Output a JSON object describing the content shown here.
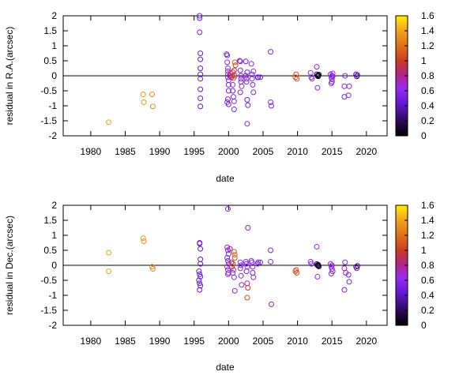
{
  "chart_data": [
    {
      "type": "scatter",
      "xlabel": "date",
      "ylabel": "residual in R.A.(arcsec)",
      "xlim": [
        1976,
        2023
      ],
      "ylim": [
        -2,
        2
      ],
      "x_ticks": [
        "1980",
        "1985",
        "1990",
        "1995",
        "2000",
        "2005",
        "2010",
        "2015",
        "2020"
      ],
      "y_ticks": [
        "-2",
        "-1.5",
        "-1",
        "-0.5",
        "0",
        "0.5",
        "1",
        "1.5",
        "2"
      ],
      "zero_line": true,
      "grid": false,
      "colorbar": {
        "range": [
          0,
          1.6
        ],
        "ticks": [
          "0",
          "0.2",
          "0.4",
          "0.6",
          "0.8",
          "1",
          "1.2",
          "1.4",
          "1.6"
        ],
        "palette": "gnuplot black-purple-red-yellow"
      },
      "points": [
        {
          "x": 1982.6,
          "y": -1.55,
          "c": 1.4
        },
        {
          "x": 1987.6,
          "y": -0.62,
          "c": 1.35
        },
        {
          "x": 1987.7,
          "y": -0.88,
          "c": 1.35
        },
        {
          "x": 1988.9,
          "y": -0.62,
          "c": 1.3
        },
        {
          "x": 1989.0,
          "y": -1.02,
          "c": 1.3
        },
        {
          "x": 1995.8,
          "y": 2.0,
          "c": 0.5
        },
        {
          "x": 1995.8,
          "y": 1.92,
          "c": 0.5
        },
        {
          "x": 1995.8,
          "y": 1.45,
          "c": 0.5
        },
        {
          "x": 1995.9,
          "y": 0.75,
          "c": 0.45
        },
        {
          "x": 1995.9,
          "y": 0.55,
          "c": 0.45
        },
        {
          "x": 1995.9,
          "y": 0.25,
          "c": 0.45
        },
        {
          "x": 1995.9,
          "y": 0.05,
          "c": 0.45
        },
        {
          "x": 1995.9,
          "y": -0.1,
          "c": 0.45
        },
        {
          "x": 1995.9,
          "y": -0.45,
          "c": 0.45
        },
        {
          "x": 1995.9,
          "y": -0.75,
          "c": 0.45
        },
        {
          "x": 1995.9,
          "y": -1.02,
          "c": 0.45
        },
        {
          "x": 1999.7,
          "y": 0.72,
          "c": 0.55
        },
        {
          "x": 1999.8,
          "y": 0.68,
          "c": 0.55
        },
        {
          "x": 1999.8,
          "y": 0.45,
          "c": 0.55
        },
        {
          "x": 1999.9,
          "y": 0.25,
          "c": 0.6
        },
        {
          "x": 1999.9,
          "y": 0.15,
          "c": 0.6
        },
        {
          "x": 1999.9,
          "y": 0.05,
          "c": 0.6
        },
        {
          "x": 1999.9,
          "y": -0.05,
          "c": 0.6
        },
        {
          "x": 2000.0,
          "y": -0.15,
          "c": 0.6
        },
        {
          "x": 2000.0,
          "y": -0.3,
          "c": 0.55
        },
        {
          "x": 2000.0,
          "y": -0.5,
          "c": 0.55
        },
        {
          "x": 1999.9,
          "y": -0.78,
          "c": 0.55
        },
        {
          "x": 1999.8,
          "y": -0.88,
          "c": 0.55
        },
        {
          "x": 2000.0,
          "y": -0.95,
          "c": 0.55
        },
        {
          "x": 2000.2,
          "y": 0.0,
          "c": 0.75
        },
        {
          "x": 2000.3,
          "y": 0.08,
          "c": 0.8
        },
        {
          "x": 2000.4,
          "y": -0.05,
          "c": 0.8
        },
        {
          "x": 2000.5,
          "y": 0.0,
          "c": 0.9
        },
        {
          "x": 2000.6,
          "y": 0.12,
          "c": 1.0
        },
        {
          "x": 2000.7,
          "y": -0.08,
          "c": 1.1
        },
        {
          "x": 2000.8,
          "y": 0.18,
          "c": 0.95
        },
        {
          "x": 2000.9,
          "y": 0.45,
          "c": 1.15
        },
        {
          "x": 2000.9,
          "y": 0.0,
          "c": 0.9
        },
        {
          "x": 2000.6,
          "y": -0.5,
          "c": 0.55
        },
        {
          "x": 2000.7,
          "y": -0.7,
          "c": 0.55
        },
        {
          "x": 2000.8,
          "y": -0.85,
          "c": 0.55
        },
        {
          "x": 2000.8,
          "y": -1.12,
          "c": 0.5
        },
        {
          "x": 2000.6,
          "y": -0.3,
          "c": 0.6
        },
        {
          "x": 2001.0,
          "y": 0.35,
          "c": 1.0
        },
        {
          "x": 2001.6,
          "y": 0.5,
          "c": 0.55
        },
        {
          "x": 2001.7,
          "y": 0.48,
          "c": 0.55
        },
        {
          "x": 2001.7,
          "y": 0.18,
          "c": 0.55
        },
        {
          "x": 2001.8,
          "y": 0.0,
          "c": 0.6
        },
        {
          "x": 2001.8,
          "y": -0.1,
          "c": 0.6
        },
        {
          "x": 2001.8,
          "y": -0.2,
          "c": 0.55
        },
        {
          "x": 2001.9,
          "y": -0.35,
          "c": 0.55
        },
        {
          "x": 2001.7,
          "y": -0.55,
          "c": 0.55
        },
        {
          "x": 2002.5,
          "y": 0.0,
          "c": 0.55
        },
        {
          "x": 2002.6,
          "y": -0.1,
          "c": 0.55
        },
        {
          "x": 2002.6,
          "y": -0.2,
          "c": 0.55
        },
        {
          "x": 2002.7,
          "y": 0.12,
          "c": 0.5
        },
        {
          "x": 2002.5,
          "y": 0.48,
          "c": 0.5
        },
        {
          "x": 2002.7,
          "y": -0.8,
          "c": 0.5
        },
        {
          "x": 2002.8,
          "y": -0.98,
          "c": 0.55
        },
        {
          "x": 2002.7,
          "y": -1.6,
          "c": 0.55
        },
        {
          "x": 2003.3,
          "y": 0.4,
          "c": 0.55
        },
        {
          "x": 2003.4,
          "y": 0.05,
          "c": 0.55
        },
        {
          "x": 2003.4,
          "y": -0.1,
          "c": 0.55
        },
        {
          "x": 2003.5,
          "y": -0.3,
          "c": 0.55
        },
        {
          "x": 2003.6,
          "y": -0.55,
          "c": 0.55
        },
        {
          "x": 2003.6,
          "y": 0.15,
          "c": 0.6
        },
        {
          "x": 2004.2,
          "y": -0.05,
          "c": 0.5
        },
        {
          "x": 2004.3,
          "y": -0.05,
          "c": 0.55
        },
        {
          "x": 2004.6,
          "y": -0.05,
          "c": 0.5
        },
        {
          "x": 2006.1,
          "y": 0.8,
          "c": 0.55
        },
        {
          "x": 2006.1,
          "y": -0.88,
          "c": 0.55
        },
        {
          "x": 2006.2,
          "y": -1.0,
          "c": 0.55
        },
        {
          "x": 2009.8,
          "y": 0.05,
          "c": 1.05
        },
        {
          "x": 2009.9,
          "y": -0.1,
          "c": 1.05
        },
        {
          "x": 2009.7,
          "y": -0.05,
          "c": 1.1
        },
        {
          "x": 2011.9,
          "y": 0.1,
          "c": 0.6
        },
        {
          "x": 2012.0,
          "y": -0.05,
          "c": 0.6
        },
        {
          "x": 2012.1,
          "y": -0.1,
          "c": 0.6
        },
        {
          "x": 2012.8,
          "y": 0.3,
          "c": 0.6
        },
        {
          "x": 2012.9,
          "y": -0.4,
          "c": 0.6
        },
        {
          "x": 2012.9,
          "y": 0.0,
          "c": 0.1
        },
        {
          "x": 2013.0,
          "y": 0.02,
          "c": 0.05
        },
        {
          "x": 2013.0,
          "y": -0.02,
          "c": 0.05
        },
        {
          "x": 2012.8,
          "y": 0.05,
          "c": 0.1
        },
        {
          "x": 2013.1,
          "y": 0.04,
          "c": 0.15
        },
        {
          "x": 2014.8,
          "y": 0.05,
          "c": 0.6
        },
        {
          "x": 2014.9,
          "y": -0.05,
          "c": 0.6
        },
        {
          "x": 2015.0,
          "y": 0.0,
          "c": 0.55
        },
        {
          "x": 2015.0,
          "y": -0.12,
          "c": 0.6
        },
        {
          "x": 2015.1,
          "y": 0.08,
          "c": 0.6
        },
        {
          "x": 2015.0,
          "y": -0.2,
          "c": 0.55
        },
        {
          "x": 2014.9,
          "y": -0.25,
          "c": 0.6
        },
        {
          "x": 2015.1,
          "y": -0.02,
          "c": 0.55
        },
        {
          "x": 2016.8,
          "y": -0.35,
          "c": 0.55
        },
        {
          "x": 2016.8,
          "y": -0.7,
          "c": 0.55
        },
        {
          "x": 2017.4,
          "y": -0.65,
          "c": 0.55
        },
        {
          "x": 2017.5,
          "y": -0.35,
          "c": 0.55
        },
        {
          "x": 2016.9,
          "y": 0.0,
          "c": 0.55
        },
        {
          "x": 2018.5,
          "y": 0.05,
          "c": 0.3
        },
        {
          "x": 2018.7,
          "y": 0.02,
          "c": 0.45
        },
        {
          "x": 2018.6,
          "y": -0.02,
          "c": 0.3
        }
      ]
    },
    {
      "type": "scatter",
      "xlabel": "date",
      "ylabel": "residual in Dec.(arcsec)",
      "xlim": [
        1976,
        2023
      ],
      "ylim": [
        -2,
        2
      ],
      "x_ticks": [
        "1980",
        "1985",
        "1990",
        "1995",
        "2000",
        "2005",
        "2010",
        "2015",
        "2020"
      ],
      "y_ticks": [
        "-2",
        "-1.5",
        "-1",
        "-0.5",
        "0",
        "0.5",
        "1",
        "1.5",
        "2"
      ],
      "zero_line": true,
      "grid": false,
      "colorbar": {
        "range": [
          0,
          1.6
        ],
        "ticks": [
          "0",
          "0.2",
          "0.4",
          "0.6",
          "0.8",
          "1",
          "1.2",
          "1.4",
          "1.6"
        ],
        "palette": "gnuplot black-purple-red-yellow"
      },
      "points": [
        {
          "x": 1982.6,
          "y": 0.42,
          "c": 1.4
        },
        {
          "x": 1982.6,
          "y": -0.2,
          "c": 1.4
        },
        {
          "x": 1987.6,
          "y": 0.9,
          "c": 1.35
        },
        {
          "x": 1987.7,
          "y": 0.8,
          "c": 1.35
        },
        {
          "x": 1988.9,
          "y": -0.05,
          "c": 1.3
        },
        {
          "x": 1989.0,
          "y": -0.12,
          "c": 1.3
        },
        {
          "x": 1995.8,
          "y": 0.75,
          "c": 0.5
        },
        {
          "x": 1995.8,
          "y": 0.72,
          "c": 0.5
        },
        {
          "x": 1995.9,
          "y": 0.55,
          "c": 0.45
        },
        {
          "x": 1995.9,
          "y": 0.2,
          "c": 0.45
        },
        {
          "x": 1995.9,
          "y": 0.05,
          "c": 0.45
        },
        {
          "x": 1995.7,
          "y": -0.2,
          "c": 0.45
        },
        {
          "x": 1995.8,
          "y": -0.3,
          "c": 0.45
        },
        {
          "x": 1995.9,
          "y": -0.38,
          "c": 0.45
        },
        {
          "x": 1995.7,
          "y": -0.5,
          "c": 0.45
        },
        {
          "x": 1995.8,
          "y": -0.6,
          "c": 0.45
        },
        {
          "x": 1995.9,
          "y": -0.68,
          "c": 0.45
        },
        {
          "x": 1995.8,
          "y": -0.82,
          "c": 0.45
        },
        {
          "x": 1999.9,
          "y": 1.88,
          "c": 0.55
        },
        {
          "x": 1999.8,
          "y": 0.6,
          "c": 0.55
        },
        {
          "x": 1999.9,
          "y": 0.5,
          "c": 0.55
        },
        {
          "x": 2000.0,
          "y": 0.38,
          "c": 0.55
        },
        {
          "x": 1999.8,
          "y": 0.25,
          "c": 0.55
        },
        {
          "x": 1999.9,
          "y": 0.15,
          "c": 0.55
        },
        {
          "x": 2000.0,
          "y": 0.05,
          "c": 0.6
        },
        {
          "x": 1999.8,
          "y": -0.05,
          "c": 0.6
        },
        {
          "x": 1999.9,
          "y": -0.15,
          "c": 0.6
        },
        {
          "x": 2000.0,
          "y": -0.25,
          "c": 0.6
        },
        {
          "x": 1999.9,
          "y": -0.3,
          "c": 0.6
        },
        {
          "x": 2000.2,
          "y": 0.55,
          "c": 0.8
        },
        {
          "x": 2000.4,
          "y": 0.1,
          "c": 0.85
        },
        {
          "x": 2000.5,
          "y": -0.05,
          "c": 0.9
        },
        {
          "x": 2000.6,
          "y": 0.05,
          "c": 1.0
        },
        {
          "x": 2000.8,
          "y": 0.45,
          "c": 1.1
        },
        {
          "x": 2000.9,
          "y": 0.35,
          "c": 1.15
        },
        {
          "x": 2000.9,
          "y": 0.25,
          "c": 1.1
        },
        {
          "x": 2000.7,
          "y": -0.15,
          "c": 0.9
        },
        {
          "x": 2000.8,
          "y": -0.4,
          "c": 0.6
        },
        {
          "x": 2000.9,
          "y": -0.85,
          "c": 0.55
        },
        {
          "x": 2000.6,
          "y": -0.25,
          "c": 0.6
        },
        {
          "x": 2001.7,
          "y": 0.1,
          "c": 0.55
        },
        {
          "x": 2001.8,
          "y": 0.0,
          "c": 0.55
        },
        {
          "x": 2001.7,
          "y": -0.1,
          "c": 0.55
        },
        {
          "x": 2001.8,
          "y": -0.35,
          "c": 0.55
        },
        {
          "x": 2001.9,
          "y": -0.65,
          "c": 0.55
        },
        {
          "x": 2002.5,
          "y": 0.12,
          "c": 0.55
        },
        {
          "x": 2002.6,
          "y": 0.05,
          "c": 0.55
        },
        {
          "x": 2002.7,
          "y": -0.05,
          "c": 0.55
        },
        {
          "x": 2002.6,
          "y": -0.2,
          "c": 0.55
        },
        {
          "x": 2002.8,
          "y": 1.25,
          "c": 0.55
        },
        {
          "x": 2002.7,
          "y": -0.6,
          "c": 0.8
        },
        {
          "x": 2002.8,
          "y": -0.75,
          "c": 0.95
        },
        {
          "x": 2002.7,
          "y": -1.08,
          "c": 1.05
        },
        {
          "x": 2003.3,
          "y": 0.15,
          "c": 0.55
        },
        {
          "x": 2003.4,
          "y": 0.1,
          "c": 0.55
        },
        {
          "x": 2003.5,
          "y": -0.05,
          "c": 0.55
        },
        {
          "x": 2003.5,
          "y": -0.25,
          "c": 0.55
        },
        {
          "x": 2003.6,
          "y": -0.4,
          "c": 0.55
        },
        {
          "x": 2004.2,
          "y": 0.05,
          "c": 0.55
        },
        {
          "x": 2004.3,
          "y": 0.1,
          "c": 0.5
        },
        {
          "x": 2004.6,
          "y": 0.1,
          "c": 0.5
        },
        {
          "x": 2006.1,
          "y": 0.5,
          "c": 0.55
        },
        {
          "x": 2006.1,
          "y": 0.12,
          "c": 0.55
        },
        {
          "x": 2006.2,
          "y": -1.3,
          "c": 0.55
        },
        {
          "x": 2009.8,
          "y": -0.15,
          "c": 1.05
        },
        {
          "x": 2009.9,
          "y": -0.25,
          "c": 1.05
        },
        {
          "x": 2009.7,
          "y": -0.2,
          "c": 1.1
        },
        {
          "x": 2011.9,
          "y": 0.12,
          "c": 0.6
        },
        {
          "x": 2012.0,
          "y": 0.05,
          "c": 0.6
        },
        {
          "x": 2012.8,
          "y": 0.62,
          "c": 0.6
        },
        {
          "x": 2012.9,
          "y": -0.38,
          "c": 0.6
        },
        {
          "x": 2012.9,
          "y": 0.0,
          "c": 0.1
        },
        {
          "x": 2013.0,
          "y": 0.02,
          "c": 0.05
        },
        {
          "x": 2013.0,
          "y": -0.02,
          "c": 0.05
        },
        {
          "x": 2012.8,
          "y": 0.04,
          "c": 0.1
        },
        {
          "x": 2013.1,
          "y": -0.04,
          "c": 0.15
        },
        {
          "x": 2014.8,
          "y": 0.05,
          "c": 0.6
        },
        {
          "x": 2014.9,
          "y": -0.05,
          "c": 0.6
        },
        {
          "x": 2015.0,
          "y": 0.0,
          "c": 0.55
        },
        {
          "x": 2015.0,
          "y": -0.12,
          "c": 0.6
        },
        {
          "x": 2015.1,
          "y": -0.2,
          "c": 0.55
        },
        {
          "x": 2014.9,
          "y": -0.28,
          "c": 0.6
        },
        {
          "x": 2016.9,
          "y": 0.1,
          "c": 0.55
        },
        {
          "x": 2016.8,
          "y": -0.1,
          "c": 0.55
        },
        {
          "x": 2017.0,
          "y": -0.25,
          "c": 0.55
        },
        {
          "x": 2017.4,
          "y": -0.32,
          "c": 0.55
        },
        {
          "x": 2017.5,
          "y": -0.55,
          "c": 0.55
        },
        {
          "x": 2016.8,
          "y": -0.82,
          "c": 0.55
        },
        {
          "x": 2018.5,
          "y": -0.05,
          "c": 0.3
        },
        {
          "x": 2018.6,
          "y": -0.1,
          "c": 0.45
        },
        {
          "x": 2018.7,
          "y": -0.02,
          "c": 0.3
        }
      ]
    }
  ]
}
